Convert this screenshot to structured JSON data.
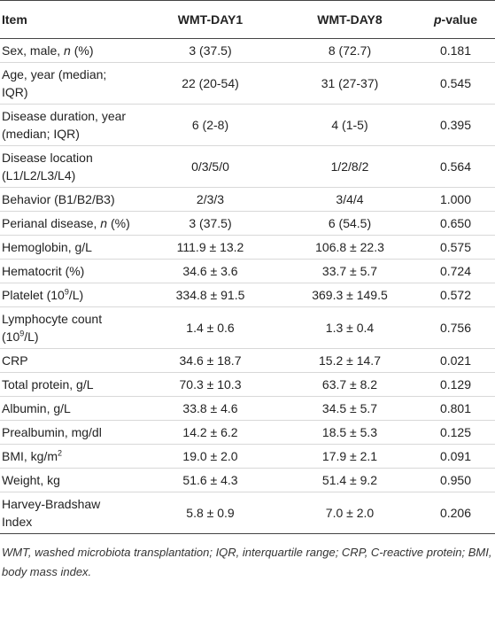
{
  "table": {
    "header": [
      [
        {
          "text": "Item"
        }
      ],
      [
        {
          "text": "WMT-DAY1"
        }
      ],
      [
        {
          "text": "WMT-DAY8"
        }
      ],
      [
        {
          "text": "p",
          "style": "italic"
        },
        {
          "text": "-value"
        }
      ]
    ],
    "rows": [
      [
        [
          {
            "text": "Sex, male, "
          },
          {
            "text": "n",
            "style": "italic"
          },
          {
            "text": " (%)"
          }
        ],
        "3 (37.5)",
        "8 (72.7)",
        "0.181"
      ],
      [
        [
          {
            "text": "Age, year (median; IQR)"
          }
        ],
        "22 (20-54)",
        "31 (27-37)",
        "0.545"
      ],
      [
        [
          {
            "text": "Disease duration, year (median; IQR)"
          }
        ],
        "6 (2-8)",
        "4 (1-5)",
        "0.395"
      ],
      [
        [
          {
            "text": "Disease location (L1/L2/L3/L4)"
          }
        ],
        "0/3/5/0",
        "1/2/8/2",
        "0.564"
      ],
      [
        [
          {
            "text": "Behavior (B1/B2/B3)"
          }
        ],
        "2/3/3",
        "3/4/4",
        "1.000"
      ],
      [
        [
          {
            "text": "Perianal disease, "
          },
          {
            "text": "n",
            "style": "italic"
          },
          {
            "text": " (%)"
          }
        ],
        "3 (37.5)",
        "6 (54.5)",
        "0.650"
      ],
      [
        [
          {
            "text": "Hemoglobin, g/L"
          }
        ],
        "111.9 ± 13.2",
        "106.8 ± 22.3",
        "0.575"
      ],
      [
        [
          {
            "text": "Hematocrit (%)"
          }
        ],
        "34.6 ± 3.6",
        "33.7 ± 5.7",
        "0.724"
      ],
      [
        [
          {
            "text": "Platelet (10"
          },
          {
            "text": "9",
            "style": "sup"
          },
          {
            "text": "/L)"
          }
        ],
        "334.8 ± 91.5",
        "369.3 ± 149.5",
        "0.572"
      ],
      [
        [
          {
            "text": "Lymphocyte count (10"
          },
          {
            "text": "9",
            "style": "sup"
          },
          {
            "text": "/L)"
          }
        ],
        "1.4 ± 0.6",
        "1.3 ± 0.4",
        "0.756"
      ],
      [
        [
          {
            "text": "CRP"
          }
        ],
        "34.6 ± 18.7",
        "15.2 ± 14.7",
        "0.021"
      ],
      [
        [
          {
            "text": "Total protein, g/L"
          }
        ],
        "70.3 ± 10.3",
        "63.7 ± 8.2",
        "0.129"
      ],
      [
        [
          {
            "text": "Albumin, g/L"
          }
        ],
        "33.8 ± 4.6",
        "34.5 ± 5.7",
        "0.801"
      ],
      [
        [
          {
            "text": "Prealbumin, mg/dl"
          }
        ],
        "14.2 ± 6.2",
        "18.5 ± 5.3",
        "0.125"
      ],
      [
        [
          {
            "text": "BMI, kg/m"
          },
          {
            "text": "2",
            "style": "sup"
          }
        ],
        "19.0 ± 2.0",
        "17.9 ± 2.1",
        "0.091"
      ],
      [
        [
          {
            "text": "Weight, kg"
          }
        ],
        "51.6 ± 4.3",
        "51.4 ± 9.2",
        "0.950"
      ],
      [
        [
          {
            "text": "Harvey-Bradshaw Index"
          }
        ],
        "5.8 ± 0.9",
        "7.0 ± 2.0",
        "0.206"
      ]
    ]
  },
  "footnote": "WMT, washed microbiota transplantation; IQR, interquartile range; CRP, C-reactive protein; BMI, body mass index."
}
